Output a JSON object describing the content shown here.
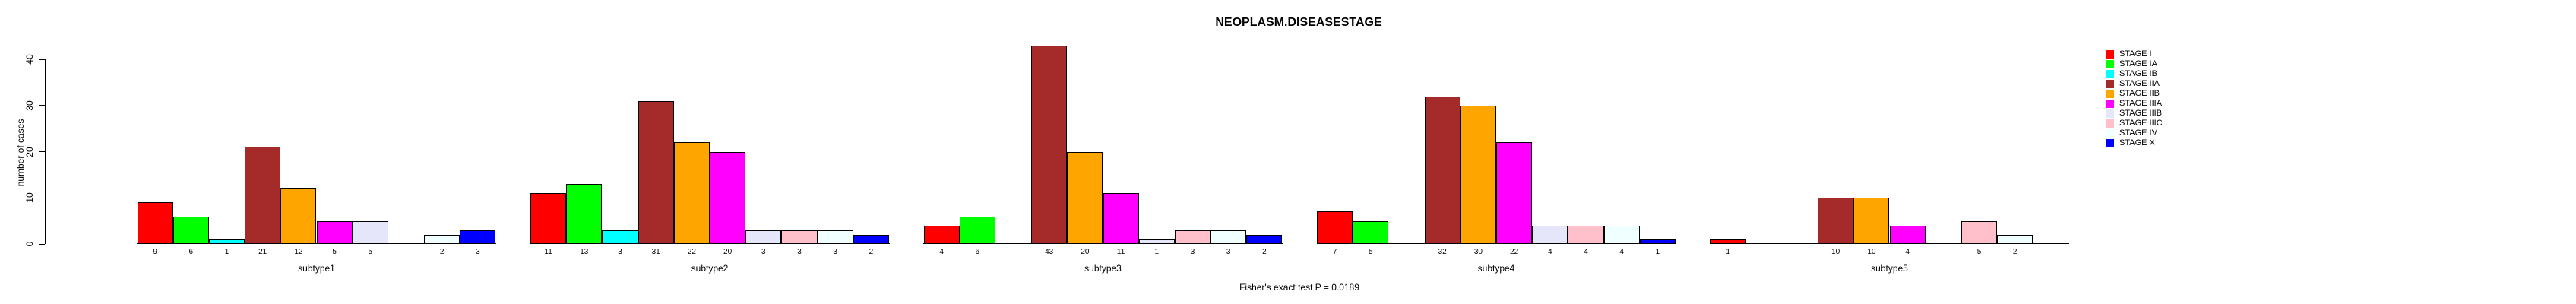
{
  "chart_data": {
    "type": "bar",
    "title": "NEOPLASM.DISEASESTAGE",
    "xlabel": "",
    "ylabel": "number of cases",
    "ylim": [
      0,
      40
    ],
    "yticks": [
      0,
      10,
      20,
      30,
      40
    ],
    "grid": false,
    "legend_position": "top-right",
    "bar_value_labels": true,
    "annotation": "Fisher's exact test P = 0.0189",
    "categories": [
      "subtype1",
      "subtype2",
      "subtype3",
      "subtype4",
      "subtype5"
    ],
    "series": [
      {
        "name": "STAGE I",
        "color": "#FF0000",
        "values": [
          9,
          11,
          4,
          7,
          1
        ]
      },
      {
        "name": "STAGE IA",
        "color": "#00FF00",
        "values": [
          6,
          13,
          6,
          5,
          0
        ]
      },
      {
        "name": "STAGE IB",
        "color": "#00FFFF",
        "values": [
          1,
          3,
          0,
          0,
          0
        ]
      },
      {
        "name": "STAGE IIA",
        "color": "#A52A2A",
        "values": [
          21,
          31,
          43,
          32,
          10
        ]
      },
      {
        "name": "STAGE IIB",
        "color": "#FFA500",
        "values": [
          12,
          22,
          20,
          30,
          10
        ]
      },
      {
        "name": "STAGE IIIA",
        "color": "#FF00FF",
        "values": [
          5,
          20,
          11,
          22,
          4
        ]
      },
      {
        "name": "STAGE IIIB",
        "color": "#E6E6FA",
        "values": [
          5,
          3,
          1,
          4,
          0
        ]
      },
      {
        "name": "STAGE IIIC",
        "color": "#FFC0CB",
        "values": [
          0,
          3,
          3,
          4,
          5
        ]
      },
      {
        "name": "STAGE IV",
        "color": "#F0FFFF",
        "values": [
          2,
          3,
          3,
          4,
          2
        ]
      },
      {
        "name": "STAGE X",
        "color": "#0000FF",
        "values": [
          3,
          2,
          2,
          1,
          0
        ]
      }
    ]
  }
}
